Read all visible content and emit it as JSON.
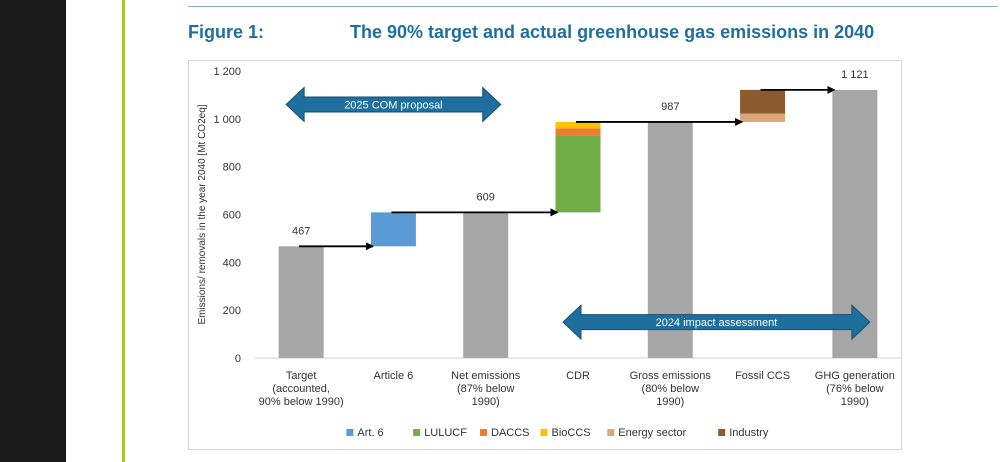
{
  "figure": {
    "label": "Figure 1:",
    "title": "The 90% target and actual greenhouse gas emissions in 2040"
  },
  "colors": {
    "gray": "#a6a6a6",
    "art6": "#5b9bd5",
    "lulucf": "#70ad47",
    "daccs": "#ed7d31",
    "bioccs": "#ffc000",
    "energy": "#d9a77a",
    "industry": "#8c5a2e",
    "arrow": "#1f6f9e",
    "pointer": "#000000"
  },
  "chart_data": {
    "type": "bar",
    "ylabel": "Emissions/ removals in the year 2040 [Mt CO2eq]",
    "ylim": [
      0,
      1200
    ],
    "yticks": [
      0,
      200,
      400,
      600,
      800,
      1000,
      1200
    ],
    "ytick_labels": [
      "0",
      "200",
      "400",
      "600",
      "800",
      "1 000",
      "1 200"
    ],
    "categories": [
      {
        "lines": [
          "Target",
          "(accounted,",
          "90% below 1990)"
        ]
      },
      {
        "lines": [
          "Article 6"
        ]
      },
      {
        "lines": [
          "Net emissions",
          "(87% below",
          "1990)"
        ]
      },
      {
        "lines": [
          "CDR"
        ]
      },
      {
        "lines": [
          "Gross emissions",
          "(80% below",
          "1990)"
        ]
      },
      {
        "lines": [
          "Fossil CCS"
        ]
      },
      {
        "lines": [
          "GHG generation",
          "(76% below",
          "1990)"
        ]
      }
    ],
    "bars": [
      {
        "segments": [
          {
            "from": 0,
            "to": 467,
            "color": "gray"
          }
        ],
        "label": "467"
      },
      {
        "segments": [
          {
            "from": 467,
            "to": 609,
            "color": "art6"
          }
        ],
        "label": ""
      },
      {
        "segments": [
          {
            "from": 0,
            "to": 609,
            "color": "gray"
          }
        ],
        "label": "609"
      },
      {
        "segments": [
          {
            "from": 609,
            "to": 930,
            "color": "lulucf"
          },
          {
            "from": 930,
            "to": 960,
            "color": "daccs"
          },
          {
            "from": 960,
            "to": 987,
            "color": "bioccs"
          }
        ],
        "label": ""
      },
      {
        "segments": [
          {
            "from": 0,
            "to": 987,
            "color": "gray"
          }
        ],
        "label": "987"
      },
      {
        "segments": [
          {
            "from": 987,
            "to": 1022,
            "color": "energy"
          },
          {
            "from": 1022,
            "to": 1121,
            "color": "industry"
          }
        ],
        "label": ""
      },
      {
        "segments": [
          {
            "from": 0,
            "to": 1121,
            "color": "gray"
          }
        ],
        "label": "1 121"
      }
    ],
    "connectors": [
      {
        "from_bar": 0,
        "to_bar": 1,
        "y": 467
      },
      {
        "from_bar": 1,
        "to_bar": 3,
        "y": 609
      },
      {
        "from_bar": 3,
        "to_bar": 5,
        "y": 987
      },
      {
        "from_bar": 5,
        "to_bar": 6,
        "y": 1121
      }
    ],
    "spans": [
      {
        "label": "2025 COM proposal",
        "from_bar": 0,
        "to_bar": 2,
        "y": 1060
      },
      {
        "label": "2024 impact assessment",
        "from_bar": 3,
        "to_bar": 6,
        "y": 150
      }
    ],
    "legend": {
      "position": "bottom",
      "items": [
        {
          "name": "Art. 6",
          "color": "art6"
        },
        {
          "name": "LULUCF",
          "color": "lulucf"
        },
        {
          "name": "DACCS",
          "color": "daccs"
        },
        {
          "name": "BioCCS",
          "color": "bioccs"
        },
        {
          "name": "Energy sector",
          "color": "energy"
        },
        {
          "name": "Industry",
          "color": "industry"
        }
      ]
    }
  }
}
